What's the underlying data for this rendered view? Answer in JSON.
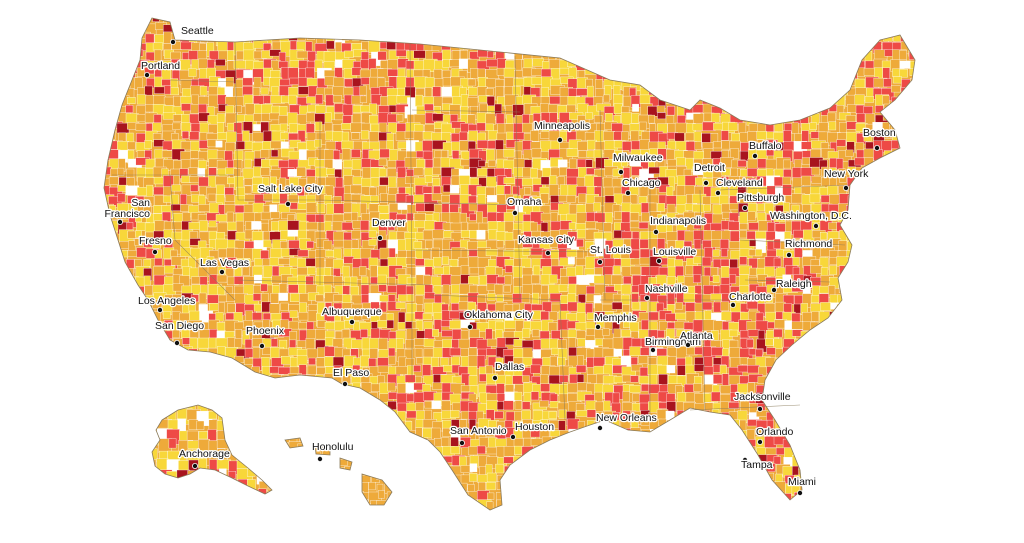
{
  "map": {
    "colors": {
      "background": "#ffffff",
      "pale_yellow": "#f6e34a",
      "yellow": "#f8d73a",
      "orange": "#eeaa3a",
      "red": "#ee4a46",
      "dark_red": "#a8141e",
      "no_data": "#ffffff",
      "border": "#ffffff",
      "state_border": "#8a7a5a"
    },
    "city_dot_color": "#111111",
    "cities": [
      {
        "id": "seattle",
        "label": "Seattle"
      },
      {
        "id": "portland",
        "label": "Portland"
      },
      {
        "id": "san-francisco",
        "label": "San Francisco"
      },
      {
        "id": "fresno",
        "label": "Fresno"
      },
      {
        "id": "los-angeles",
        "label": "Los Angeles"
      },
      {
        "id": "san-diego",
        "label": "San Diego"
      },
      {
        "id": "las-vegas",
        "label": "Las Vegas"
      },
      {
        "id": "salt-lake-city",
        "label": "Salt Lake City"
      },
      {
        "id": "phoenix",
        "label": "Phoenix"
      },
      {
        "id": "denver",
        "label": "Denver"
      },
      {
        "id": "albuquerque",
        "label": "Albuquerque"
      },
      {
        "id": "el-paso",
        "label": "El Paso"
      },
      {
        "id": "minneapolis",
        "label": "Minneapolis"
      },
      {
        "id": "omaha",
        "label": "Omaha"
      },
      {
        "id": "kansas-city",
        "label": "Kansas City"
      },
      {
        "id": "oklahoma-city",
        "label": "Oklahoma City"
      },
      {
        "id": "dallas",
        "label": "Dallas"
      },
      {
        "id": "san-antonio",
        "label": "San Antonio"
      },
      {
        "id": "houston",
        "label": "Houston"
      },
      {
        "id": "milwaukee",
        "label": "Milwaukee"
      },
      {
        "id": "chicago",
        "label": "Chicago"
      },
      {
        "id": "detroit",
        "label": "Detroit"
      },
      {
        "id": "st-louis",
        "label": "St. Louis"
      },
      {
        "id": "indianapolis",
        "label": "Indianapolis"
      },
      {
        "id": "louisville",
        "label": "Louisville"
      },
      {
        "id": "nashville",
        "label": "Nashville"
      },
      {
        "id": "memphis",
        "label": "Memphis"
      },
      {
        "id": "birmingham",
        "label": "Birmingham"
      },
      {
        "id": "atlanta",
        "label": "Atlanta"
      },
      {
        "id": "new-orleans",
        "label": "New Orleans"
      },
      {
        "id": "cleveland",
        "label": "Cleveland"
      },
      {
        "id": "buffalo",
        "label": "Buffalo"
      },
      {
        "id": "pittsburgh",
        "label": "Pittsburgh"
      },
      {
        "id": "washington-dc",
        "label": "Washington, D.C."
      },
      {
        "id": "richmond",
        "label": "Richmond"
      },
      {
        "id": "raleigh",
        "label": "Raleigh"
      },
      {
        "id": "charlotte",
        "label": "Charlotte"
      },
      {
        "id": "jacksonville",
        "label": "Jacksonville"
      },
      {
        "id": "orlando",
        "label": "Orlando"
      },
      {
        "id": "tampa",
        "label": "Tampa"
      },
      {
        "id": "miami",
        "label": "Miami"
      },
      {
        "id": "new-york",
        "label": "New York"
      },
      {
        "id": "boston",
        "label": "Boston"
      },
      {
        "id": "anchorage",
        "label": "Anchorage"
      },
      {
        "id": "honolulu",
        "label": "Honolulu"
      }
    ]
  }
}
